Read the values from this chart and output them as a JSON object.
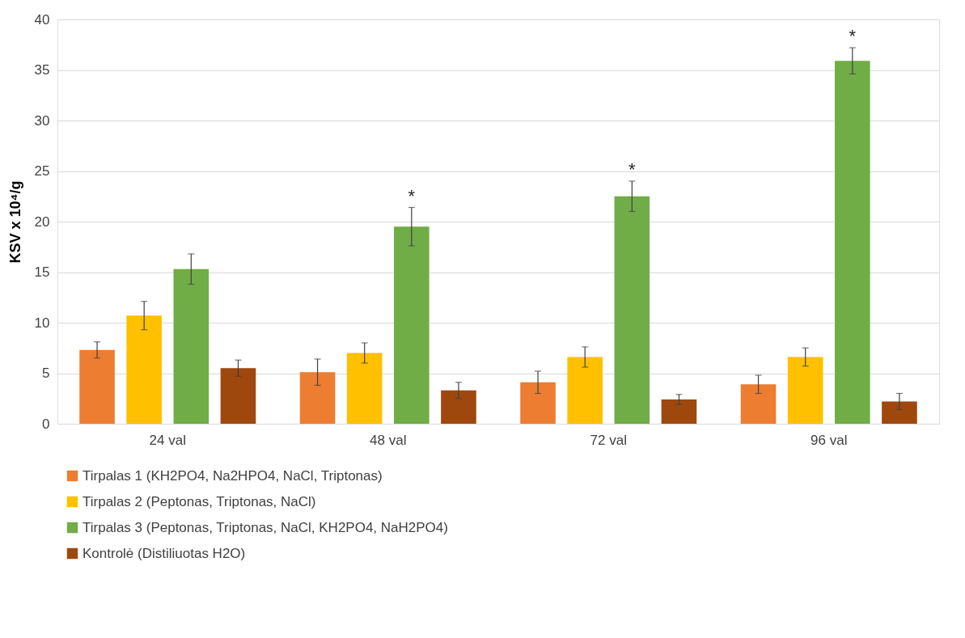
{
  "chart_data": {
    "type": "bar",
    "ylabel": "KSV x 10⁴/g",
    "categories": [
      "24 val",
      "48 val",
      "72 val",
      "96 val"
    ],
    "series": [
      {
        "name": "Tirpalas 1 (KH2PO4, Na2HPO4, NaCl, Triptonas)",
        "color": "#ed7d31",
        "values": [
          7.3,
          5.1,
          4.1,
          3.9
        ],
        "errors": [
          0.8,
          1.3,
          1.1,
          0.9
        ]
      },
      {
        "name": "Tirpalas 2 (Peptonas, Triptonas, NaCl)",
        "color": "#ffc000",
        "values": [
          10.7,
          7.0,
          6.6,
          6.6
        ],
        "errors": [
          1.4,
          1.0,
          1.0,
          0.9
        ]
      },
      {
        "name": "Tirpalas 3 (Peptonas, Triptonas, NaCl, KH2PO4, NaH2PO4)",
        "color": "#70ad47",
        "values": [
          15.3,
          19.5,
          22.5,
          35.9
        ],
        "errors": [
          1.5,
          1.9,
          1.5,
          1.3
        ]
      },
      {
        "name": "Kontrolė (Distiliuotas H2O)",
        "color": "#9e480e",
        "values": [
          5.5,
          3.3,
          2.4,
          2.2
        ],
        "errors": [
          0.8,
          0.8,
          0.5,
          0.8
        ]
      }
    ],
    "annotations": [
      "*",
      "*",
      "*"
    ],
    "ylim": [
      0,
      40
    ],
    "yticks": [
      0,
      5,
      10,
      15,
      20,
      25,
      30,
      35,
      40
    ],
    "grid": "y",
    "legend": "bottom"
  }
}
